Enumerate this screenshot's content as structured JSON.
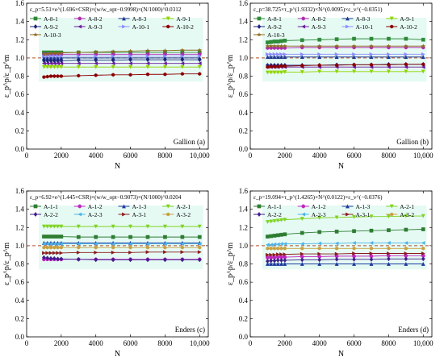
{
  "colors": {
    "A-8-1": "#2e8b3a",
    "A-8-2": "#b22bb0",
    "A-8-3": "#1f3a93",
    "A-9-1": "#8fd400",
    "A-9-2": "#1a237e",
    "A-9-3": "#6a1b9a",
    "A-10-1": "#8c8cff",
    "A-10-2": "#8b0000",
    "A-10-3": "#8b6b1a",
    "A-1-1": "#2e7d32",
    "A-1-2": "#c026c0",
    "A-1-3": "#1a3a9e",
    "A-2-1": "#7ed321",
    "A-2-2": "#3f1f8a",
    "A-2-3": "#4fb3e8",
    "A-3-1": "#8b1a1a",
    "A-3-2": "#c8a040",
    "refline": "#b0502a",
    "band": "#b8f0e0"
  },
  "chart_data": [
    {
      "type": "line",
      "panel_label": "Gallion (a)",
      "formula": "ε_p=5.51×e^(1.696×CSR)×(w/w_opt−0.9998)×(N/1000)^0.0312",
      "xlabel": "N",
      "ylabel": "ε_p^p/ε_p^m",
      "xlim": [
        0,
        10500
      ],
      "ylim": [
        0.0,
        1.6
      ],
      "xticks": [
        0,
        2000,
        4000,
        6000,
        8000,
        "10,000"
      ],
      "yticks": [
        0.0,
        0.2,
        0.4,
        0.6,
        0.8,
        1.0,
        1.2,
        1.4,
        1.6
      ],
      "reference_line": 1.0,
      "legend_location": "top-left",
      "x": [
        1000,
        1200,
        1400,
        1600,
        1800,
        2000,
        3000,
        4000,
        5000,
        6000,
        7000,
        8000,
        9000,
        10000
      ],
      "series": [
        {
          "name": "A-8-1",
          "marker": "square",
          "values": [
            1.06,
            1.06,
            1.06,
            1.06,
            1.06,
            1.06,
            1.06,
            1.06,
            1.06,
            1.06,
            1.06,
            1.06,
            1.06,
            1.06
          ]
        },
        {
          "name": "A-8-2",
          "marker": "circle",
          "values": [
            1.04,
            1.04,
            1.04,
            1.04,
            1.04,
            1.04,
            1.04,
            1.04,
            1.04,
            1.04,
            1.04,
            1.04,
            1.04,
            1.04
          ]
        },
        {
          "name": "A-8-3",
          "marker": "triangle-up",
          "values": [
            1.0,
            1.0,
            1.0,
            1.0,
            1.0,
            1.0,
            1.0,
            1.0,
            1.0,
            1.0,
            1.0,
            1.0,
            1.0,
            1.0
          ]
        },
        {
          "name": "A-9-1",
          "marker": "triangle-down",
          "values": [
            0.9,
            0.9,
            0.9,
            0.9,
            0.9,
            0.9,
            0.9,
            0.9,
            0.9,
            0.9,
            0.9,
            0.9,
            0.9,
            0.9
          ]
        },
        {
          "name": "A-9-2",
          "marker": "diamond",
          "values": [
            0.97,
            0.97,
            0.97,
            0.97,
            0.97,
            0.97,
            0.975,
            0.975,
            0.975,
            0.98,
            0.98,
            0.98,
            0.98,
            0.98
          ]
        },
        {
          "name": "A-9-3",
          "marker": "triangle-left",
          "values": [
            0.94,
            0.94,
            0.94,
            0.94,
            0.94,
            0.94,
            0.94,
            0.94,
            0.94,
            0.94,
            0.94,
            0.94,
            0.94,
            0.94
          ]
        },
        {
          "name": "A-10-1",
          "marker": "triangle-right",
          "values": [
            1.02,
            1.02,
            1.02,
            1.02,
            1.02,
            1.02,
            1.02,
            1.02,
            1.02,
            1.02,
            1.02,
            1.02,
            1.02,
            1.02
          ]
        },
        {
          "name": "A-10-2",
          "marker": "hexagon",
          "values": [
            0.79,
            0.795,
            0.8,
            0.8,
            0.8,
            0.8,
            0.805,
            0.81,
            0.815,
            0.815,
            0.82,
            0.82,
            0.825,
            0.825
          ]
        },
        {
          "name": "A-10-3",
          "marker": "star",
          "values": [
            1.04,
            1.045,
            1.05,
            1.05,
            1.05,
            1.055,
            1.06,
            1.065,
            1.07,
            1.075,
            1.08,
            1.08,
            1.085,
            1.085
          ]
        }
      ]
    },
    {
      "type": "line",
      "panel_label": "Gallion (b)",
      "formula": "ε_p=38.725×τ_p^(1.9332)×N^(0.0095)×ε_v^(−0.0351)",
      "xlabel": "N",
      "ylabel": "ε_p^p/ε_p^m",
      "xlim": [
        0,
        10500
      ],
      "ylim": [
        0.0,
        1.6
      ],
      "xticks": [
        0,
        2000,
        4000,
        6000,
        8000,
        "10,000"
      ],
      "yticks": [
        0.0,
        0.2,
        0.4,
        0.6,
        0.8,
        1.0,
        1.2,
        1.4,
        1.6
      ],
      "reference_line": 1.0,
      "legend_location": "top-left",
      "x": [
        1000,
        1200,
        1400,
        1600,
        1800,
        2000,
        3000,
        4000,
        5000,
        6000,
        7000,
        8000,
        9000,
        10000
      ],
      "series": [
        {
          "name": "A-8-1",
          "marker": "square",
          "values": [
            1.17,
            1.175,
            1.18,
            1.18,
            1.185,
            1.19,
            1.195,
            1.2,
            1.205,
            1.21,
            1.21,
            1.21,
            1.21,
            1.2
          ]
        },
        {
          "name": "A-8-2",
          "marker": "circle",
          "values": [
            1.11,
            1.11,
            1.11,
            1.11,
            1.11,
            1.11,
            1.115,
            1.115,
            1.115,
            1.115,
            1.115,
            1.115,
            1.115,
            1.115
          ]
        },
        {
          "name": "A-8-3",
          "marker": "triangle-up",
          "values": [
            1.01,
            1.01,
            1.01,
            1.01,
            1.01,
            1.01,
            1.01,
            1.01,
            1.01,
            1.01,
            1.01,
            1.01,
            1.01,
            1.01
          ]
        },
        {
          "name": "A-9-1",
          "marker": "triangle-down",
          "values": [
            0.84,
            0.84,
            0.84,
            0.84,
            0.84,
            0.845,
            0.845,
            0.85,
            0.85,
            0.85,
            0.85,
            0.85,
            0.85,
            0.85
          ]
        },
        {
          "name": "A-9-2",
          "marker": "diamond",
          "values": [
            0.92,
            0.92,
            0.92,
            0.92,
            0.92,
            0.92,
            0.92,
            0.92,
            0.925,
            0.925,
            0.925,
            0.93,
            0.93,
            0.93
          ]
        },
        {
          "name": "A-9-3",
          "marker": "triangle-left",
          "values": [
            0.9,
            0.9,
            0.9,
            0.9,
            0.9,
            0.9,
            0.9,
            0.9,
            0.9,
            0.9,
            0.9,
            0.9,
            0.9,
            0.9
          ]
        },
        {
          "name": "A-10-1",
          "marker": "triangle-right",
          "values": [
            1.04,
            1.04,
            1.04,
            1.04,
            1.04,
            1.04,
            1.04,
            1.04,
            1.04,
            1.04,
            1.04,
            1.04,
            1.04,
            1.04
          ]
        },
        {
          "name": "A-10-2",
          "marker": "hexagon",
          "values": [
            0.9,
            0.905,
            0.905,
            0.905,
            0.91,
            0.91,
            0.915,
            0.92,
            0.92,
            0.925,
            0.925,
            0.925,
            0.93,
            0.93
          ]
        },
        {
          "name": "A-10-3",
          "marker": "star",
          "values": [
            1.13,
            1.13,
            1.13,
            1.13,
            1.13,
            1.13,
            1.13,
            1.13,
            1.13,
            1.13,
            1.13,
            1.13,
            1.13,
            1.13
          ]
        }
      ]
    },
    {
      "type": "line",
      "panel_label": "Enders (c)",
      "formula": "ε_p=6.92×e^(1.445×CSR)×(w/w_opt−0.9073)×(N/1000)^0.0204",
      "xlabel": "N",
      "ylabel": "ε_p^p/ε_p^m",
      "xlim": [
        0,
        10500
      ],
      "ylim": [
        0.0,
        1.6
      ],
      "xticks": [
        0,
        2000,
        4000,
        6000,
        8000,
        "10,000"
      ],
      "yticks": [
        0.0,
        0.2,
        0.4,
        0.6,
        0.8,
        1.0,
        1.2,
        1.4,
        1.6
      ],
      "reference_line": 1.0,
      "legend_location": "top-left",
      "x": [
        1000,
        1200,
        1400,
        1600,
        1800,
        2000,
        3000,
        4000,
        5000,
        6000,
        7000,
        8000,
        9000,
        10000
      ],
      "series": [
        {
          "name": "A-1-1",
          "marker": "square",
          "values": [
            1.1,
            1.1,
            1.1,
            1.1,
            1.1,
            1.1,
            1.095,
            1.095,
            1.095,
            1.095,
            1.095,
            1.095,
            1.095,
            1.095
          ]
        },
        {
          "name": "A-1-2",
          "marker": "circle",
          "values": [
            0.85,
            0.85,
            0.85,
            0.85,
            0.85,
            0.85,
            0.85,
            0.85,
            0.85,
            0.85,
            0.85,
            0.85,
            0.85,
            0.85
          ]
        },
        {
          "name": "A-1-3",
          "marker": "triangle-up",
          "values": [
            1.03,
            1.03,
            1.03,
            1.03,
            1.03,
            1.03,
            1.03,
            1.03,
            1.03,
            1.03,
            1.03,
            1.03,
            1.03,
            1.03
          ]
        },
        {
          "name": "A-2-1",
          "marker": "triangle-down",
          "values": [
            1.21,
            1.21,
            1.21,
            1.21,
            1.21,
            1.21,
            1.21,
            1.21,
            1.21,
            1.21,
            1.21,
            1.21,
            1.21,
            1.21
          ]
        },
        {
          "name": "A-2-2",
          "marker": "diamond",
          "values": [
            0.87,
            0.865,
            0.86,
            0.86,
            0.855,
            0.855,
            0.85,
            0.845,
            0.845,
            0.845,
            0.845,
            0.845,
            0.845,
            0.845
          ]
        },
        {
          "name": "A-2-3",
          "marker": "triangle-left",
          "values": [
            1.02,
            1.02,
            1.02,
            1.02,
            1.02,
            1.02,
            1.02,
            1.02,
            1.02,
            1.02,
            1.02,
            1.02,
            1.02,
            1.02
          ]
        },
        {
          "name": "A-3-1",
          "marker": "triangle-right",
          "values": [
            0.92,
            0.92,
            0.92,
            0.92,
            0.92,
            0.92,
            0.925,
            0.925,
            0.925,
            0.925,
            0.93,
            0.93,
            0.93,
            0.93
          ]
        },
        {
          "name": "A-3-2",
          "marker": "hexagon",
          "values": [
            0.98,
            0.98,
            0.98,
            0.98,
            0.98,
            0.98,
            0.98,
            0.98,
            0.98,
            0.98,
            0.98,
            0.98,
            0.98,
            0.98
          ]
        }
      ]
    },
    {
      "type": "line",
      "panel_label": "Enders (d)",
      "formula": "ε_p=19.094×τ_p^(1.4265)×N^(0.0122)×ε_v^(−0.0376)",
      "xlabel": "N",
      "ylabel": "ε_p^p/ε_p^m",
      "xlim": [
        0,
        10500
      ],
      "ylim": [
        0.0,
        1.6
      ],
      "xticks": [
        0,
        2000,
        4000,
        6000,
        8000,
        "10,000"
      ],
      "yticks": [
        0.0,
        0.2,
        0.4,
        0.6,
        0.8,
        1.0,
        1.2,
        1.4,
        1.6
      ],
      "reference_line": 1.0,
      "legend_location": "top-left",
      "x": [
        1000,
        1200,
        1400,
        1600,
        1800,
        2000,
        3000,
        4000,
        5000,
        6000,
        7000,
        8000,
        9000,
        10000
      ],
      "series": [
        {
          "name": "A-1-1",
          "marker": "square",
          "values": [
            1.1,
            1.105,
            1.11,
            1.115,
            1.12,
            1.125,
            1.14,
            1.15,
            1.155,
            1.16,
            1.165,
            1.17,
            1.175,
            1.18
          ]
        },
        {
          "name": "A-1-2",
          "marker": "circle",
          "values": [
            0.87,
            0.87,
            0.87,
            0.875,
            0.875,
            0.875,
            0.88,
            0.88,
            0.885,
            0.885,
            0.885,
            0.89,
            0.89,
            0.89
          ]
        },
        {
          "name": "A-1-3",
          "marker": "triangle-up",
          "values": [
            0.8,
            0.8,
            0.8,
            0.8,
            0.8,
            0.8,
            0.8,
            0.8,
            0.8,
            0.8,
            0.8,
            0.8,
            0.8,
            0.8
          ]
        },
        {
          "name": "A-2-1",
          "marker": "triangle-down",
          "values": [
            1.26,
            1.265,
            1.27,
            1.275,
            1.28,
            1.285,
            1.295,
            1.305,
            1.31,
            1.315,
            1.32,
            1.32,
            1.325,
            1.325
          ]
        },
        {
          "name": "A-2-2",
          "marker": "diamond",
          "values": [
            0.83,
            0.835,
            0.835,
            0.84,
            0.84,
            0.84,
            0.845,
            0.845,
            0.85,
            0.85,
            0.85,
            0.855,
            0.855,
            0.855
          ]
        },
        {
          "name": "A-2-3",
          "marker": "triangle-left",
          "values": [
            1.01,
            1.01,
            1.015,
            1.015,
            1.02,
            1.02,
            1.02,
            1.025,
            1.025,
            1.03,
            1.03,
            1.03,
            1.03,
            1.03
          ]
        },
        {
          "name": "A-3-1",
          "marker": "triangle-right",
          "values": [
            0.9,
            0.9,
            0.9,
            0.905,
            0.905,
            0.905,
            0.91,
            0.91,
            0.91,
            0.915,
            0.915,
            0.915,
            0.915,
            0.915
          ]
        },
        {
          "name": "A-3-2",
          "marker": "hexagon",
          "values": [
            0.97,
            0.97,
            0.97,
            0.97,
            0.97,
            0.97,
            0.97,
            0.97,
            0.97,
            0.97,
            0.97,
            0.97,
            0.97,
            0.97
          ]
        }
      ]
    }
  ]
}
